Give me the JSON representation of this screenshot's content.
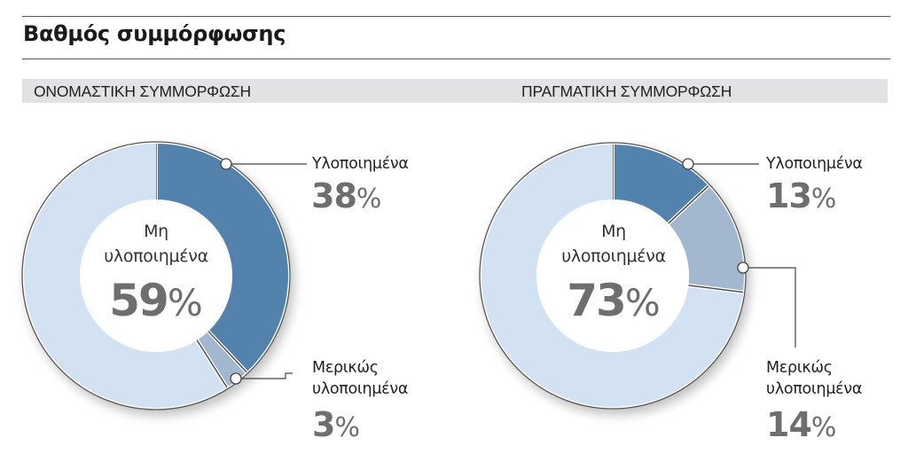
{
  "title": "Βαθμός συμμόρφωσης",
  "colors": {
    "implemented": "#5282ad",
    "partial": "#a3b8cf",
    "not_implemented": "#d3e2f3",
    "header_band": "#e1e2e4",
    "pct_text": "#6e6e70"
  },
  "charts": [
    {
      "header": "ΟΝΟΜΑΣΤΙΚΗ ΣΥΜΜΟΡΦΩΣΗ",
      "center_label_line1": "Μη",
      "center_label_line2": "υλοποιημένα",
      "center_value": "59",
      "implemented_label": "Υλοποιημένα",
      "implemented_value": "38",
      "partial_label_line1": "Μερικώς",
      "partial_label_line2": "υλοποιημένα",
      "partial_value": "3",
      "pct_sign": "%"
    },
    {
      "header": "ΠΡΑΓΜΑΤΙΚΗ ΣΥΜΜΟΡΦΩΣΗ",
      "center_label_line1": "Μη",
      "center_label_line2": "υλοποιημένα",
      "center_value": "73",
      "implemented_label": "Υλοποιημένα",
      "implemented_value": "13",
      "partial_label_line1": "Μερικώς",
      "partial_label_line2": "υλοποιημένα",
      "partial_value": "14",
      "pct_sign": "%"
    }
  ],
  "chart_data": [
    {
      "type": "pie",
      "title": "ΟΝΟΜΑΣΤΙΚΗ ΣΥΜΜΟΡΦΩΣΗ",
      "categories": [
        "Υλοποιημένα",
        "Μερικώς υλοποιημένα",
        "Μη υλοποιημένα"
      ],
      "values": [
        38,
        3,
        59
      ],
      "unit": "%",
      "donut": true
    },
    {
      "type": "pie",
      "title": "ΠΡΑΓΜΑΤΙΚΗ ΣΥΜΜΟΡΦΩΣΗ",
      "categories": [
        "Υλοποιημένα",
        "Μερικώς υλοποιημένα",
        "Μη υλοποιημένα"
      ],
      "values": [
        13,
        14,
        73
      ],
      "unit": "%",
      "donut": true
    }
  ]
}
